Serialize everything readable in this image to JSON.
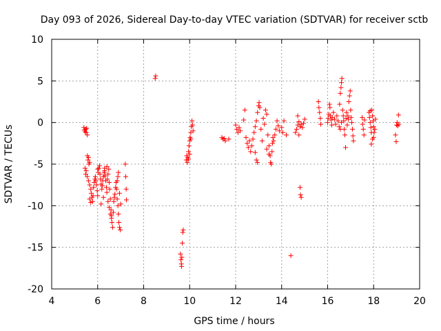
{
  "chart_data": {
    "type": "scatter",
    "title": "Day 093 of 2026, Sidereal Day-to-day VTEC variation (SDTVAR) for receiver sctb",
    "xlabel": "GPS time / hours",
    "ylabel": "SDTVAR / TECUs",
    "xlim": [
      4,
      20
    ],
    "ylim": [
      -20,
      10
    ],
    "xticks": [
      "4",
      "6",
      "8",
      "10",
      "12",
      "14",
      "16",
      "18",
      "20"
    ],
    "yticks": [
      "10",
      "5",
      "0",
      "-5",
      "-10",
      "-15",
      "-20"
    ],
    "grid": true,
    "marker": "+",
    "color": "#ff0000",
    "series": [
      {
        "name": "SDTVAR",
        "points": [
          [
            5.4,
            -0.6
          ],
          [
            5.42,
            -0.9
          ],
          [
            5.45,
            -1.1
          ],
          [
            5.48,
            -0.8
          ],
          [
            5.5,
            -1.2
          ],
          [
            5.52,
            -0.7
          ],
          [
            5.55,
            -1.5
          ],
          [
            5.45,
            -5.5
          ],
          [
            5.48,
            -6.2
          ],
          [
            5.5,
            -5.8
          ],
          [
            5.55,
            -4.0
          ],
          [
            5.58,
            -4.5
          ],
          [
            5.6,
            -4.2
          ],
          [
            5.62,
            -5.0
          ],
          [
            5.65,
            -4.8
          ],
          [
            5.55,
            -6.5
          ],
          [
            5.6,
            -7.0
          ],
          [
            5.65,
            -7.5
          ],
          [
            5.7,
            -8.0
          ],
          [
            5.72,
            -8.5
          ],
          [
            5.75,
            -9.0
          ],
          [
            5.78,
            -9.5
          ],
          [
            5.8,
            -8.8
          ],
          [
            5.82,
            -7.8
          ],
          [
            5.85,
            -7.2
          ],
          [
            5.88,
            -6.8
          ],
          [
            5.9,
            -6.5
          ],
          [
            5.92,
            -7.0
          ],
          [
            5.95,
            -7.5
          ],
          [
            5.98,
            -8.2
          ],
          [
            6.0,
            -8.8
          ],
          [
            6.02,
            -6.0
          ],
          [
            6.05,
            -5.5
          ],
          [
            6.08,
            -5.2
          ],
          [
            6.1,
            -6.2
          ],
          [
            6.12,
            -6.8
          ],
          [
            6.15,
            -7.4
          ],
          [
            6.18,
            -8.0
          ],
          [
            6.2,
            -7.6
          ],
          [
            6.22,
            -7.0
          ],
          [
            6.25,
            -6.5
          ],
          [
            6.28,
            -6.0
          ],
          [
            6.3,
            -5.8
          ],
          [
            6.32,
            -6.4
          ],
          [
            6.35,
            -7.0
          ],
          [
            6.38,
            -7.8
          ],
          [
            6.4,
            -8.4
          ],
          [
            6.42,
            -6.8
          ],
          [
            6.45,
            -6.2
          ],
          [
            6.48,
            -5.6
          ],
          [
            6.5,
            -7.2
          ],
          [
            6.52,
            -8.0
          ],
          [
            6.55,
            -9.2
          ],
          [
            6.58,
            -10.5
          ],
          [
            6.6,
            -11.2
          ],
          [
            6.62,
            -12.0
          ],
          [
            6.65,
            -12.6
          ],
          [
            6.68,
            -10.8
          ],
          [
            6.7,
            -9.5
          ],
          [
            6.72,
            -9.0
          ],
          [
            6.75,
            -8.6
          ],
          [
            6.78,
            -7.8
          ],
          [
            6.8,
            -7.2
          ],
          [
            6.82,
            -8.0
          ],
          [
            6.85,
            -9.2
          ],
          [
            6.88,
            -10.0
          ],
          [
            6.9,
            -11.0
          ],
          [
            6.92,
            -12.0
          ],
          [
            6.95,
            -12.6
          ],
          [
            6.98,
            -12.9
          ],
          [
            7.0,
            -9.8
          ],
          [
            6.85,
            -7.0
          ],
          [
            6.88,
            -6.5
          ],
          [
            6.9,
            -6.0
          ],
          [
            6.95,
            -8.5
          ],
          [
            7.2,
            -5.0
          ],
          [
            7.22,
            -6.5
          ],
          [
            7.24,
            -8.0
          ],
          [
            7.25,
            -9.3
          ],
          [
            6.45,
            -9.5
          ],
          [
            6.5,
            -10.2
          ],
          [
            6.55,
            -11.0
          ],
          [
            6.6,
            -11.5
          ],
          [
            6.15,
            -9.8
          ],
          [
            5.7,
            -9.6
          ],
          [
            5.65,
            -9.2
          ],
          [
            6.4,
            -5.3
          ],
          [
            6.3,
            -5.5
          ],
          [
            6.25,
            -9.0
          ],
          [
            6.0,
            -5.6
          ],
          [
            8.5,
            5.3
          ],
          [
            8.52,
            5.6
          ],
          [
            9.6,
            -15.8
          ],
          [
            9.62,
            -16.5
          ],
          [
            9.64,
            -17.0
          ],
          [
            9.66,
            -16.2
          ],
          [
            9.68,
            -14.5
          ],
          [
            9.7,
            -13.2
          ],
          [
            9.72,
            -12.9
          ],
          [
            9.65,
            -17.3
          ],
          [
            9.85,
            -4.5
          ],
          [
            9.87,
            -4.0
          ],
          [
            9.9,
            -4.8
          ],
          [
            9.92,
            -4.2
          ],
          [
            9.95,
            -3.5
          ],
          [
            9.97,
            -2.8
          ],
          [
            10.0,
            -2.2
          ],
          [
            10.02,
            -1.8
          ],
          [
            10.05,
            -1.2
          ],
          [
            10.08,
            -0.5
          ],
          [
            10.1,
            0.2
          ],
          [
            10.12,
            -0.3
          ],
          [
            10.15,
            -1.0
          ],
          [
            10.0,
            -3.8
          ],
          [
            9.95,
            -4.4
          ],
          [
            10.05,
            -2.0
          ],
          [
            11.4,
            -1.8
          ],
          [
            11.45,
            -2.0
          ],
          [
            11.5,
            -1.9
          ],
          [
            11.55,
            -2.2
          ],
          [
            11.7,
            -2.0
          ],
          [
            12.0,
            -0.3
          ],
          [
            12.05,
            -0.8
          ],
          [
            12.1,
            -1.2
          ],
          [
            12.15,
            -0.6
          ],
          [
            12.2,
            -1.0
          ],
          [
            12.35,
            0.3
          ],
          [
            12.4,
            1.5
          ],
          [
            12.45,
            -1.8
          ],
          [
            12.5,
            -2.5
          ],
          [
            12.55,
            -3.0
          ],
          [
            12.6,
            -2.2
          ],
          [
            12.65,
            -3.5
          ],
          [
            12.7,
            -2.8
          ],
          [
            12.75,
            -2.0
          ],
          [
            12.8,
            -1.2
          ],
          [
            12.85,
            -0.5
          ],
          [
            12.9,
            0.2
          ],
          [
            12.95,
            1.2
          ],
          [
            13.0,
            2.0
          ],
          [
            13.02,
            2.4
          ],
          [
            13.05,
            1.8
          ],
          [
            12.9,
            -4.5
          ],
          [
            12.95,
            -4.8
          ],
          [
            12.85,
            -3.6
          ],
          [
            13.1,
            -0.8
          ],
          [
            13.15,
            -2.2
          ],
          [
            13.2,
            0.5
          ],
          [
            13.25,
            -0.2
          ],
          [
            13.3,
            1.5
          ],
          [
            13.35,
            1.0
          ],
          [
            13.4,
            -1.5
          ],
          [
            13.45,
            -2.8
          ],
          [
            13.5,
            -4.0
          ],
          [
            13.52,
            -4.8
          ],
          [
            13.55,
            -5.0
          ],
          [
            13.58,
            -3.5
          ],
          [
            13.6,
            -2.5
          ],
          [
            13.62,
            -1.8
          ],
          [
            13.65,
            -2.2
          ],
          [
            13.7,
            -1.5
          ],
          [
            13.75,
            -0.8
          ],
          [
            13.8,
            0.2
          ],
          [
            13.85,
            -0.4
          ],
          [
            13.9,
            -1.0
          ],
          [
            14.0,
            -0.6
          ],
          [
            14.05,
            -1.2
          ],
          [
            14.1,
            0.2
          ],
          [
            14.2,
            -1.5
          ],
          [
            13.35,
            -3.2
          ],
          [
            13.45,
            -3.8
          ],
          [
            14.4,
            -16.0
          ],
          [
            14.6,
            -1.2
          ],
          [
            14.65,
            -0.8
          ],
          [
            14.7,
            -0.3
          ],
          [
            14.75,
            0.1
          ],
          [
            14.8,
            -0.5
          ],
          [
            14.85,
            -0.2
          ],
          [
            14.9,
            -0.6
          ],
          [
            14.8,
            -7.8
          ],
          [
            14.82,
            -8.7
          ],
          [
            14.85,
            -9.0
          ],
          [
            14.75,
            -1.5
          ],
          [
            14.95,
            -0.1
          ],
          [
            15.0,
            0.4
          ],
          [
            14.7,
            0.8
          ],
          [
            15.6,
            2.5
          ],
          [
            15.62,
            1.8
          ],
          [
            15.65,
            1.2
          ],
          [
            15.68,
            0.5
          ],
          [
            15.7,
            -0.2
          ],
          [
            16.0,
            0.0
          ],
          [
            16.02,
            0.5
          ],
          [
            16.05,
            1.0
          ],
          [
            16.08,
            2.2
          ],
          [
            16.1,
            1.8
          ],
          [
            16.12,
            0.8
          ],
          [
            16.15,
            0.3
          ],
          [
            16.18,
            -0.3
          ],
          [
            16.2,
            0.6
          ],
          [
            16.25,
            1.2
          ],
          [
            16.3,
            0.4
          ],
          [
            16.35,
            -0.2
          ],
          [
            16.4,
            0.8
          ],
          [
            16.45,
            0.2
          ],
          [
            16.5,
            -0.5
          ],
          [
            16.52,
            2.2
          ],
          [
            16.55,
            3.5
          ],
          [
            16.58,
            4.2
          ],
          [
            16.6,
            4.8
          ],
          [
            16.62,
            5.3
          ],
          [
            16.65,
            1.5
          ],
          [
            16.68,
            0.8
          ],
          [
            16.7,
            0.2
          ],
          [
            16.72,
            -0.8
          ],
          [
            16.75,
            -1.5
          ],
          [
            16.78,
            -3.0
          ],
          [
            16.8,
            0.5
          ],
          [
            16.82,
            1.2
          ],
          [
            16.85,
            -0.3
          ],
          [
            16.88,
            0.8
          ],
          [
            16.9,
            0.4
          ],
          [
            16.92,
            2.5
          ],
          [
            16.95,
            3.2
          ],
          [
            16.98,
            3.8
          ],
          [
            17.0,
            1.5
          ],
          [
            17.02,
            0.6
          ],
          [
            17.05,
            0.0
          ],
          [
            17.08,
            -0.8
          ],
          [
            17.1,
            -1.6
          ],
          [
            17.12,
            -2.2
          ],
          [
            16.6,
            0.0
          ],
          [
            16.55,
            -0.8
          ],
          [
            17.5,
            0.6
          ],
          [
            17.52,
            -0.2
          ],
          [
            17.55,
            -0.8
          ],
          [
            17.58,
            -1.5
          ],
          [
            17.6,
            0.3
          ],
          [
            17.8,
            1.2
          ],
          [
            17.82,
            0.6
          ],
          [
            17.85,
            0.0
          ],
          [
            17.88,
            -0.6
          ],
          [
            17.9,
            -1.2
          ],
          [
            17.92,
            1.5
          ],
          [
            17.95,
            0.8
          ],
          [
            17.98,
            0.2
          ],
          [
            18.0,
            -0.5
          ],
          [
            18.02,
            -1.2
          ],
          [
            18.05,
            -0.8
          ],
          [
            18.08,
            0.4
          ],
          [
            17.85,
            1.4
          ],
          [
            17.95,
            -2.0
          ],
          [
            17.9,
            -2.6
          ],
          [
            18.0,
            -1.8
          ],
          [
            18.95,
            -1.5
          ],
          [
            18.98,
            -2.3
          ],
          [
            19.0,
            -0.3
          ],
          [
            19.02,
            0.0
          ],
          [
            19.05,
            -0.4
          ],
          [
            19.08,
            0.9
          ],
          [
            19.1,
            -0.2
          ]
        ]
      }
    ]
  }
}
